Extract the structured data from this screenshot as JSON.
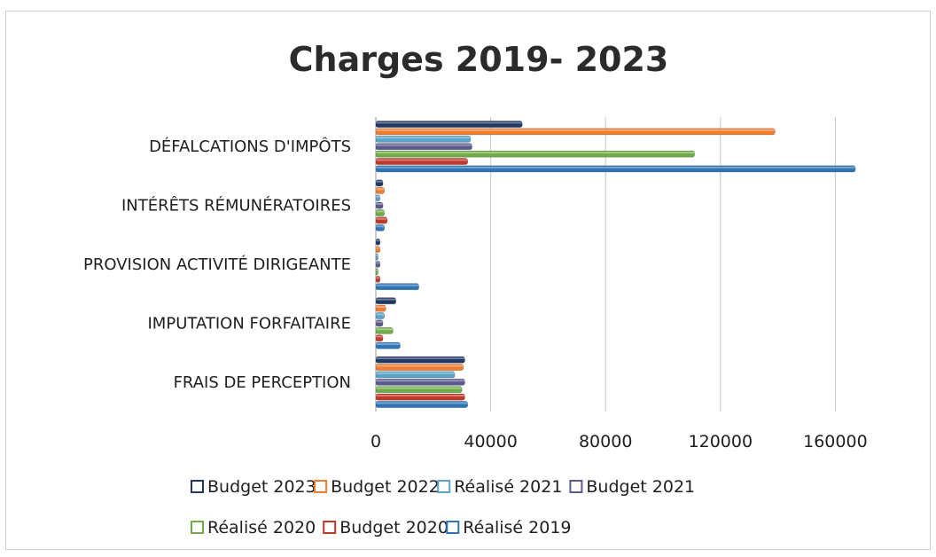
{
  "chart_data": {
    "type": "bar",
    "orientation": "horizontal",
    "title": "Charges 2019- 2023",
    "categories": [
      "FRAIS DE PERCEPTION",
      "IMPUTATION FORFAITAIRE",
      "PROVISION ACTIVITÉ DIRIGEANTE",
      "INTÉRÊTS RÉMUNÉRATOIRES",
      "DÉFALCATIONS D'IMPÔTS"
    ],
    "series": [
      {
        "name": "Budget 2023",
        "color": "#1f3864",
        "values": [
          31000,
          7000,
          1500,
          2500,
          51000
        ]
      },
      {
        "name": "Budget 2022",
        "color": "#ed7d31",
        "values": [
          30500,
          3500,
          1500,
          3000,
          139000
        ]
      },
      {
        "name": "Réalisé 2021",
        "color": "#5ba3c9",
        "values": [
          27500,
          3000,
          800,
          1500,
          33000
        ]
      },
      {
        "name": "Budget 2021",
        "color": "#5b5a8f",
        "values": [
          31000,
          2500,
          1500,
          2500,
          33500
        ]
      },
      {
        "name": "Réalisé 2020",
        "color": "#70ad47",
        "values": [
          30000,
          6000,
          800,
          3000,
          111000
        ]
      },
      {
        "name": "Budget 2020",
        "color": "#c0392b",
        "values": [
          31000,
          2500,
          1500,
          4000,
          32000
        ]
      },
      {
        "name": "Réalisé 2019",
        "color": "#2e75b6",
        "values": [
          32000,
          8500,
          15000,
          3000,
          167000
        ]
      }
    ],
    "xticks": [
      "0",
      "40000",
      "80000",
      "120000",
      "160000"
    ],
    "xlim": [
      0,
      180000
    ],
    "grid": true,
    "legend_position": "bottom"
  }
}
